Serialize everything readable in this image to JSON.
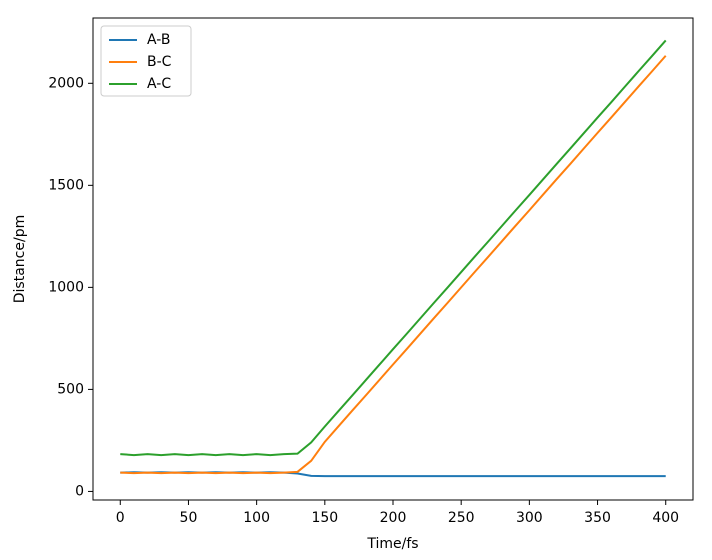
{
  "chart_data": {
    "type": "line",
    "xlabel": "Time/fs",
    "ylabel": "Distance/pm",
    "x": [
      0,
      10,
      20,
      30,
      40,
      50,
      60,
      70,
      80,
      90,
      100,
      110,
      120,
      130,
      140,
      150,
      160,
      170,
      180,
      190,
      200,
      210,
      220,
      230,
      240,
      250,
      260,
      270,
      280,
      290,
      300,
      310,
      320,
      330,
      340,
      350,
      360,
      370,
      380,
      390,
      400
    ],
    "series": [
      {
        "name": "A-B",
        "color": "#1f77b4",
        "values": [
          92,
          94,
          92,
          94,
          92,
          94,
          92,
          94,
          92,
          94,
          92,
          94,
          92,
          88,
          76,
          75,
          75,
          75,
          75,
          75,
          75,
          75,
          75,
          75,
          75,
          75,
          75,
          75,
          75,
          75,
          75,
          75,
          75,
          75,
          75,
          75,
          75,
          75,
          75,
          75,
          75
        ]
      },
      {
        "name": "B-C",
        "color": "#ff7f0e",
        "values": [
          92,
          90,
          92,
          90,
          92,
          90,
          92,
          90,
          92,
          90,
          92,
          90,
          92,
          96,
          150,
          243,
          319,
          395,
          470,
          546,
          622,
          697,
          773,
          849,
          924,
          1000,
          1076,
          1151,
          1227,
          1303,
          1378,
          1454,
          1530,
          1605,
          1681,
          1757,
          1832,
          1908,
          1984,
          2059,
          2135
        ]
      },
      {
        "name": "A-C",
        "color": "#2ca02c",
        "values": [
          183,
          178,
          183,
          178,
          183,
          178,
          183,
          178,
          183,
          178,
          183,
          178,
          183,
          185,
          240,
          318,
          394,
          469,
          545,
          621,
          697,
          772,
          848,
          924,
          999,
          1075,
          1151,
          1226,
          1302,
          1378,
          1453,
          1529,
          1605,
          1680,
          1756,
          1832,
          1907,
          1983,
          2059,
          2134,
          2210
        ]
      }
    ],
    "xlim": [
      -20,
      420
    ],
    "ylim": [
      -42,
      2320
    ],
    "xticks": [
      0,
      50,
      100,
      150,
      200,
      250,
      300,
      350,
      400
    ],
    "yticks": [
      0,
      500,
      1000,
      1500,
      2000
    ],
    "legend": "upper left"
  }
}
